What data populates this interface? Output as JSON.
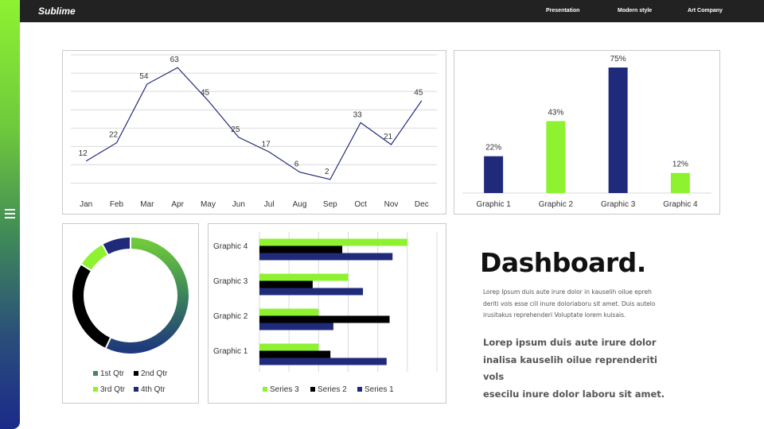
{
  "header": {
    "brand": "Sublime",
    "nav": [
      "Presentation",
      "Modern style",
      "Art Company"
    ]
  },
  "colors": {
    "lime": "#8ef231",
    "navy": "#1f2a7a",
    "black": "#000000",
    "teal": "#3f8a58",
    "header_bg": "#222222"
  },
  "sidebar": {
    "menu_icon": "hamburger-icon"
  },
  "dashboard": {
    "title": "Dashboard.",
    "small_lines": [
      "Lorep  Ipsum duis aute irure dolor in kauselih oilue epreh",
      "deriti vols esse cill inure doloriaboru sit amet. Duis autelo",
      "irusitakus reprehenderi Voluptate lorem kuisais."
    ],
    "large_lines": [
      "Lorep  ipsum duis aute irure dolor",
      "inalisa kauselih oilue reprenderiti vols",
      "esecilu inure dolor laboru sit amet."
    ]
  },
  "chart_data": [
    {
      "type": "line",
      "categories": [
        "Jan",
        "Feb",
        "Mar",
        "Apr",
        "May",
        "Jun",
        "Jul",
        "Aug",
        "Sep",
        "Oct",
        "Nov",
        "Dec"
      ],
      "values": [
        12,
        22,
        54,
        63,
        45,
        25,
        17,
        6,
        2,
        33,
        21,
        45
      ],
      "ylim": [
        -5,
        70
      ],
      "grid": true,
      "data_labels": true,
      "color": "#1f2a7a"
    },
    {
      "type": "bar",
      "categories": [
        "Graphic 1",
        "Graphic 2",
        "Graphic 3",
        "Graphic 4"
      ],
      "values": [
        22,
        43,
        75,
        12
      ],
      "value_format": "percent",
      "ylim": [
        0,
        75
      ],
      "colors": [
        "#1f2a7a",
        "#8ef231",
        "#1f2a7a",
        "#8ef231"
      ],
      "data_labels": true
    },
    {
      "type": "pie",
      "style": "donut",
      "categories": [
        "1st Qtr",
        "2nd Qtr",
        "3rd Qtr",
        "4th Qtr"
      ],
      "values": [
        57,
        27,
        8,
        8
      ],
      "colors": [
        "gradient",
        "#000000",
        "#8ef231",
        "#1f2a7a"
      ],
      "legend": "bottom"
    },
    {
      "type": "bar",
      "orientation": "horizontal",
      "categories": [
        "Graphic 1",
        "Graphic 2",
        "Graphic 3",
        "Graphic 4"
      ],
      "series": [
        {
          "name": "Series 3",
          "values": [
            2.0,
            2.0,
            3.0,
            5.0
          ],
          "color": "#8ef231"
        },
        {
          "name": "Series 2",
          "values": [
            2.4,
            4.4,
            1.8,
            2.8
          ],
          "color": "#000000"
        },
        {
          "name": "Series 1",
          "values": [
            4.3,
            2.5,
            3.5,
            4.5
          ],
          "color": "#1f2a7a"
        }
      ],
      "xlim": [
        0,
        6
      ],
      "grid": true,
      "legend": "bottom"
    }
  ]
}
